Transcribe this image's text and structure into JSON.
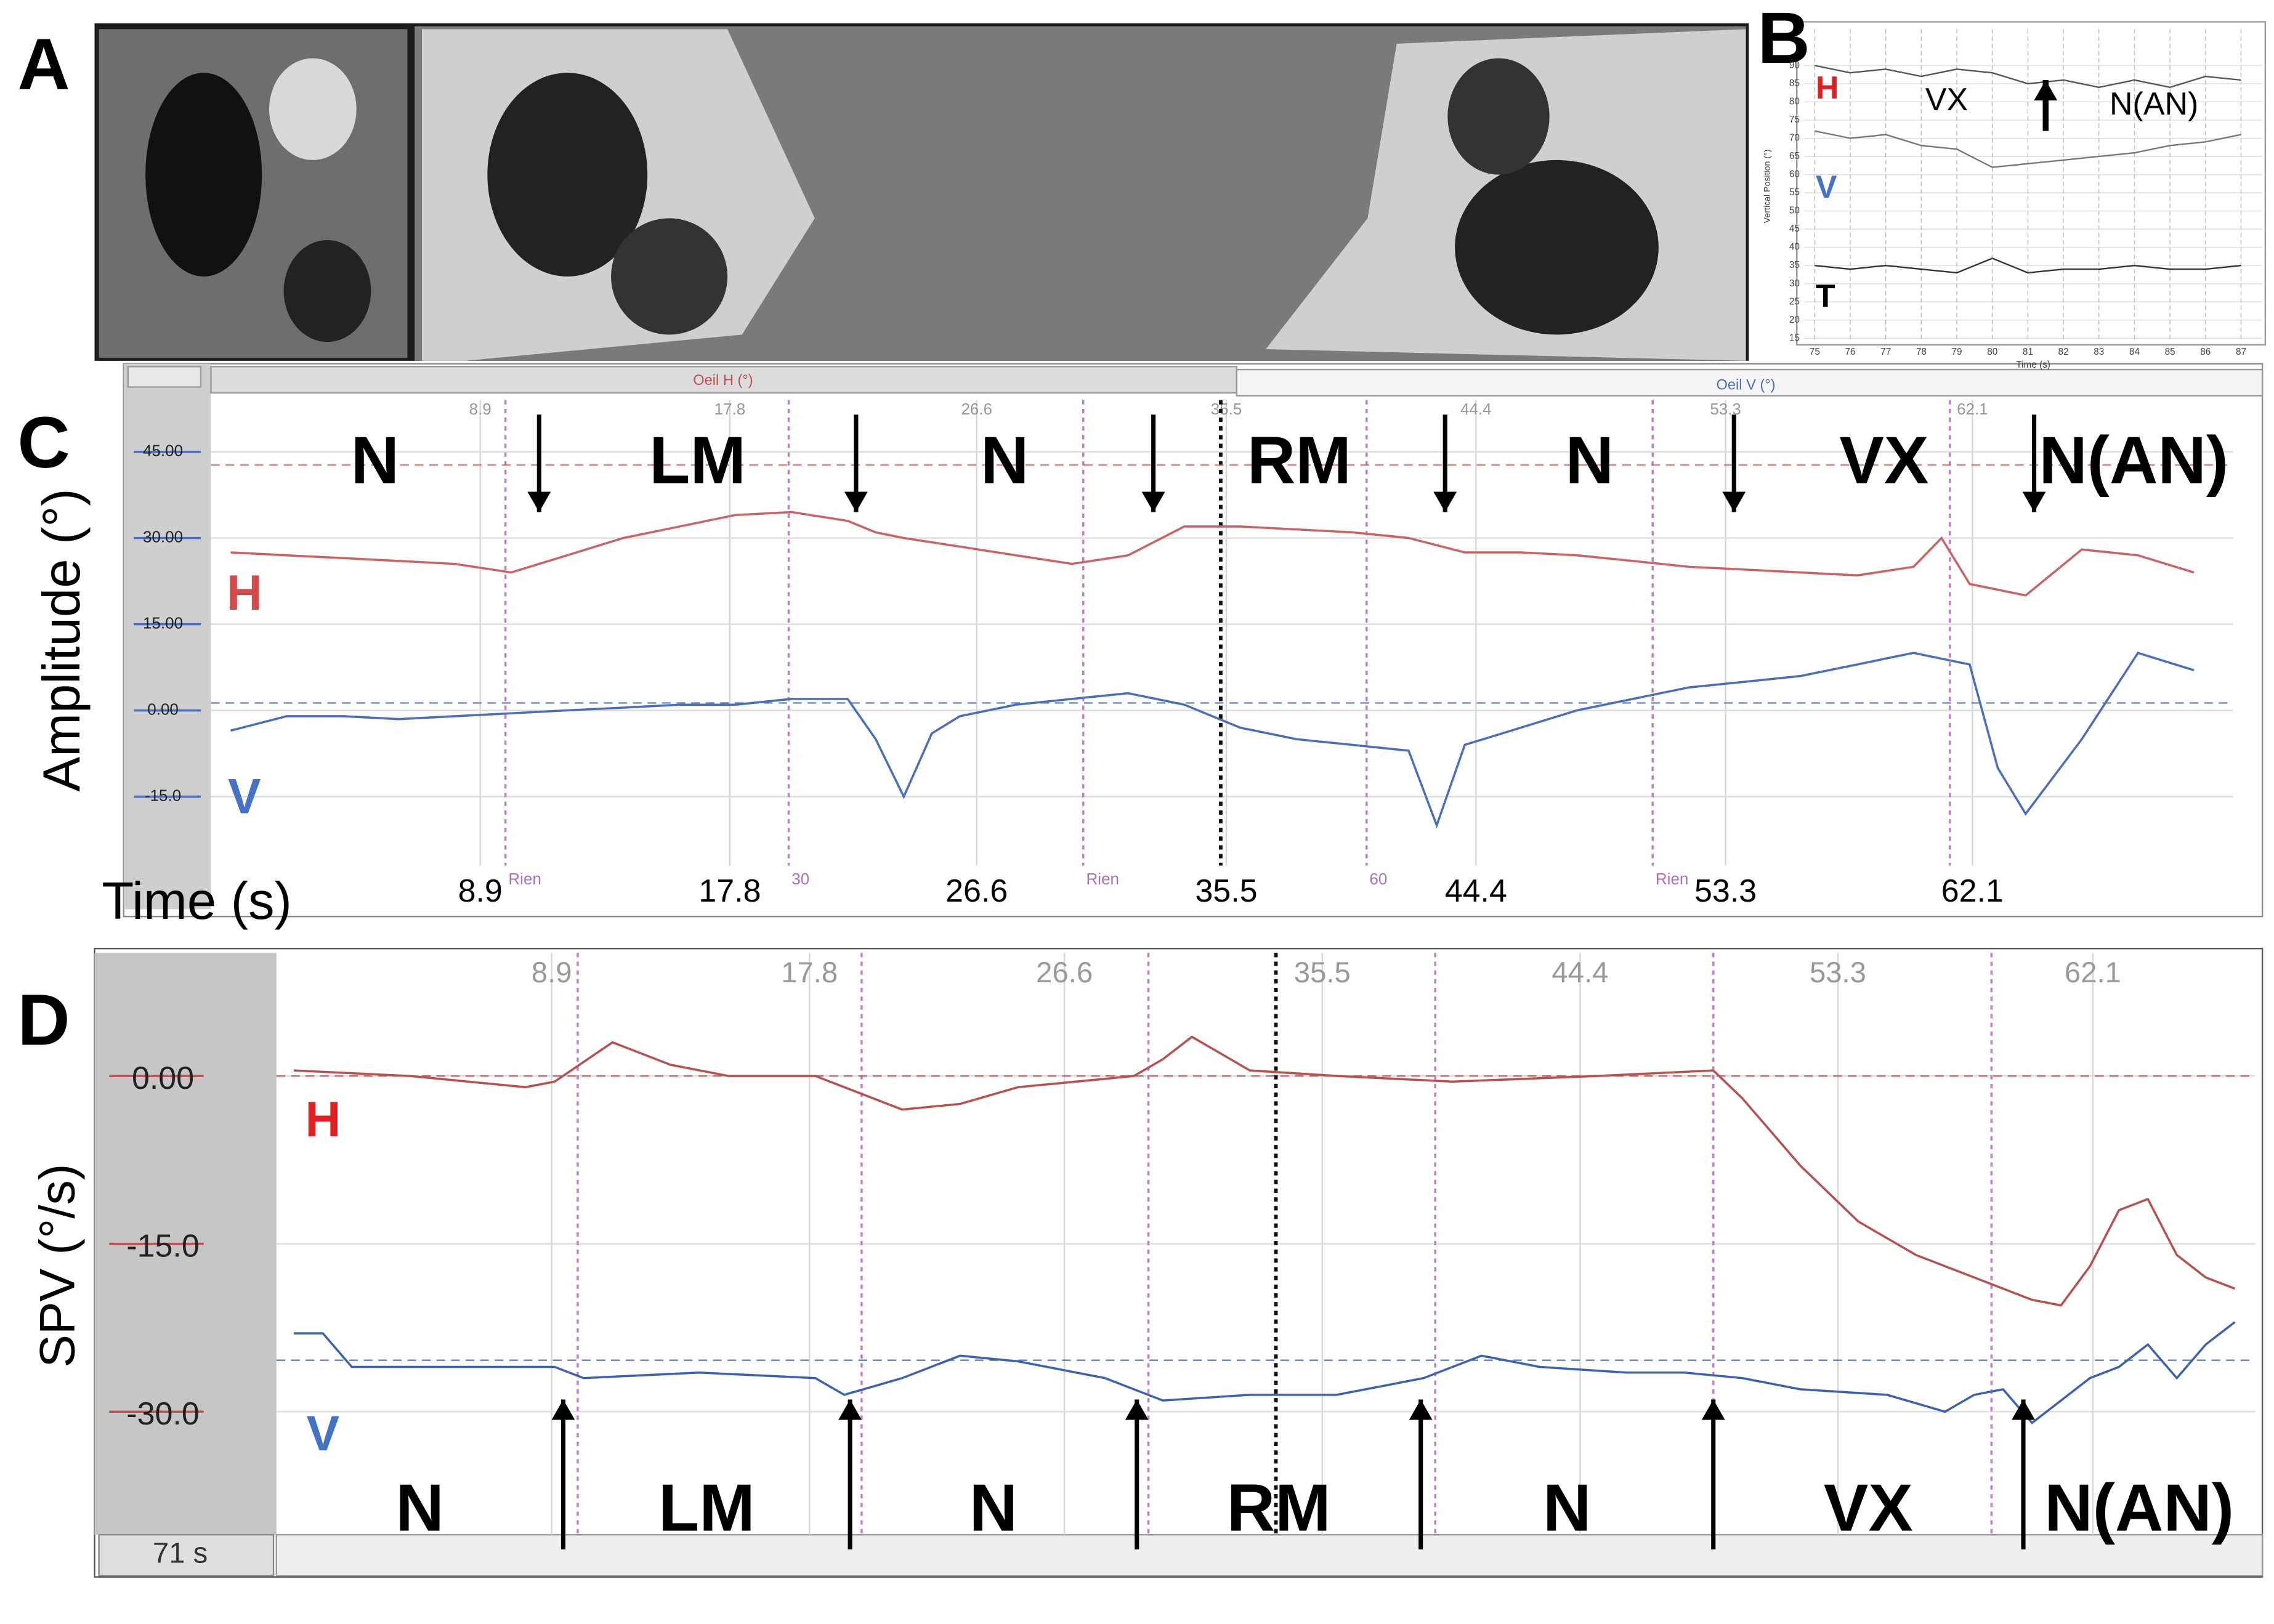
{
  "panel_a": {
    "label": "A"
  },
  "panel_b": {
    "label": "B",
    "xlabel": "Time (s)",
    "ylabel": "Vertical Position (°)",
    "xlim": [
      74.7,
      87.6
    ],
    "ylim": [
      14,
      100
    ],
    "xticks": [
      75,
      76,
      77,
      78,
      79,
      80,
      81,
      82,
      83,
      84,
      85,
      86,
      87
    ],
    "yticks": [
      15,
      20,
      25,
      30,
      35,
      40,
      45,
      50,
      55,
      60,
      65,
      70,
      75,
      80,
      85,
      90
    ],
    "segments": [
      "VX",
      "N(AN)"
    ],
    "transition": 81.5,
    "x": [
      75,
      76,
      77,
      78,
      79,
      80,
      81,
      82,
      83,
      84,
      85,
      86,
      87
    ],
    "series": [
      {
        "name": "H",
        "color": "#e02020",
        "trace_color": "#555555",
        "values": [
          90,
          88,
          89,
          87,
          89,
          88,
          85,
          86,
          84,
          86,
          84,
          87,
          86
        ]
      },
      {
        "name": "V",
        "color": "#4472c4",
        "trace_color": "#777777",
        "values": [
          72,
          70,
          71,
          68,
          67,
          62,
          63,
          64,
          65,
          66,
          68,
          69,
          71
        ]
      },
      {
        "name": "T",
        "color": "#000000",
        "trace_color": "#333333",
        "values": [
          35,
          34,
          35,
          34,
          33,
          37,
          33,
          34,
          34,
          35,
          34,
          34,
          35
        ]
      }
    ]
  },
  "panel_c": {
    "label": "C",
    "channel_labels": [
      "Oeil H (°)",
      "Oeil V (°)"
    ],
    "ylabel": "Amplitude (°)",
    "xlabel": "Time (s)",
    "xlim": [
      -0.7,
      71.4
    ],
    "ylim": [
      -27,
      54
    ],
    "yticks": [
      {
        "value": 45,
        "label": "45.00"
      },
      {
        "value": 30,
        "label": "30.00"
      },
      {
        "value": 15,
        "label": "15.00"
      },
      {
        "value": 0,
        "label": "0.00"
      },
      {
        "value": -15,
        "label": "-15.0"
      }
    ],
    "xticks": [
      8.9,
      17.8,
      26.6,
      35.5,
      44.4,
      53.3,
      62.1
    ],
    "transitions": [
      11.0,
      22.3,
      32.9,
      43.3,
      53.6,
      64.3
    ],
    "segments": [
      "N",
      "LM",
      "N",
      "RM",
      "N",
      "VX",
      "N(AN)"
    ],
    "event_lines": [
      9.8,
      19.9,
      30.4,
      40.5,
      50.7,
      61.3
    ],
    "event_labels": [
      "Rien",
      "30",
      "Rien",
      "60",
      "Rien",
      null
    ],
    "cursor": 35.3,
    "series": [
      {
        "name": "H",
        "color": "#d24a4a",
        "trace_color": "#c86464",
        "baseline": 42.7,
        "x": [
          0,
          2,
          4,
          6,
          8,
          10,
          12,
          14,
          16,
          18,
          20,
          22,
          23,
          24,
          26,
          28,
          30,
          32,
          34,
          36,
          38,
          40,
          42,
          44,
          46,
          48,
          50,
          52,
          54,
          56,
          58,
          60,
          61,
          62,
          64,
          66,
          68,
          70
        ],
        "values": [
          27.5,
          27,
          26.5,
          26,
          25.5,
          24,
          27,
          30,
          32,
          34,
          34.5,
          33,
          31,
          30,
          28.5,
          27,
          25.5,
          27,
          32,
          32,
          31.5,
          31,
          30,
          27.5,
          27.5,
          27,
          26,
          25,
          24.5,
          24,
          23.5,
          25,
          30,
          22,
          20,
          28,
          27,
          24
        ]
      },
      {
        "name": "V",
        "color": "#4472c4",
        "trace_color": "#4a6fb8",
        "baseline": 1.3,
        "x": [
          0,
          2,
          4,
          6,
          8,
          10,
          12,
          14,
          16,
          18,
          20,
          22,
          23,
          24,
          25,
          26,
          28,
          30,
          32,
          34,
          36,
          38,
          40,
          42,
          43,
          44,
          46,
          48,
          50,
          52,
          54,
          56,
          58,
          60,
          62,
          63,
          64,
          66,
          68,
          70
        ],
        "values": [
          -3.5,
          -1,
          -1,
          -1.5,
          -1,
          -0.5,
          0,
          0.5,
          1,
          1,
          2,
          2,
          -5,
          -15,
          -4,
          -1,
          1,
          2,
          3,
          1,
          -3,
          -5,
          -6,
          -7,
          -20,
          -6,
          -3,
          0,
          2,
          4,
          5,
          6,
          8,
          10,
          8,
          -10,
          -18,
          -5,
          10,
          7
        ]
      }
    ]
  },
  "panel_d": {
    "label": "D",
    "ylabel": "SPV (°/s)",
    "footer": "71 s",
    "xlim": [
      -0.6,
      67.7
    ],
    "ylim": [
      -41,
      11
    ],
    "yticks": [
      {
        "value": 0,
        "label": "0.00"
      },
      {
        "value": -15,
        "label": "-15.0"
      },
      {
        "value": -30,
        "label": "-30.0"
      }
    ],
    "xticks": [
      8.9,
      17.8,
      26.6,
      35.5,
      44.4,
      53.3,
      62.1
    ],
    "transitions": [
      9.3,
      19.2,
      29.1,
      38.9,
      49.0,
      59.7
    ],
    "segments": [
      "N",
      "LM",
      "N",
      "RM",
      "N",
      "VX",
      "N(AN)"
    ],
    "event_lines": [
      9.8,
      19.6,
      29.5,
      39.4,
      49.0,
      58.6
    ],
    "cursor": 33.9,
    "series": [
      {
        "name": "H",
        "color": "#e02020",
        "trace_color": "#b85050",
        "baseline": 0,
        "x": [
          0,
          4,
          8,
          9,
          11,
          13,
          15,
          18,
          19,
          21,
          23,
          25,
          27,
          29,
          30,
          31,
          32,
          33,
          36,
          40,
          45,
          49,
          50,
          52,
          54,
          56,
          58,
          60,
          61,
          62,
          63,
          64,
          65,
          66,
          67
        ],
        "values": [
          0.5,
          0,
          -1,
          -0.5,
          3,
          1,
          0,
          0,
          -1,
          -3,
          -2.5,
          -1,
          -0.5,
          0,
          1.5,
          3.5,
          2,
          0.5,
          0,
          -0.5,
          0,
          0.5,
          -2,
          -8,
          -13,
          -16,
          -18,
          -20,
          -20.5,
          -17,
          -12,
          -11,
          -16,
          -18,
          -19
        ]
      },
      {
        "name": "V",
        "color": "#4472c4",
        "trace_color": "#3a62b0",
        "baseline": -25.4,
        "x": [
          0,
          1,
          2,
          4,
          8,
          9,
          10,
          14,
          18,
          19,
          21,
          23,
          25,
          28,
          30,
          33,
          36,
          39,
          41,
          43,
          46,
          48,
          50,
          52,
          55,
          57,
          58,
          59,
          60,
          61,
          62,
          63,
          64,
          65,
          66,
          67
        ],
        "values": [
          -23,
          -23,
          -26,
          -26,
          -26,
          -26,
          -27,
          -26.5,
          -27,
          -28.5,
          -27,
          -25,
          -25.5,
          -27,
          -29,
          -28.5,
          -28.5,
          -27,
          -25,
          -26,
          -26.5,
          -26.5,
          -27,
          -28,
          -28.5,
          -30,
          -28.5,
          -28,
          -31,
          -29,
          -27,
          -26,
          -24,
          -27,
          -24,
          -22
        ]
      }
    ]
  }
}
